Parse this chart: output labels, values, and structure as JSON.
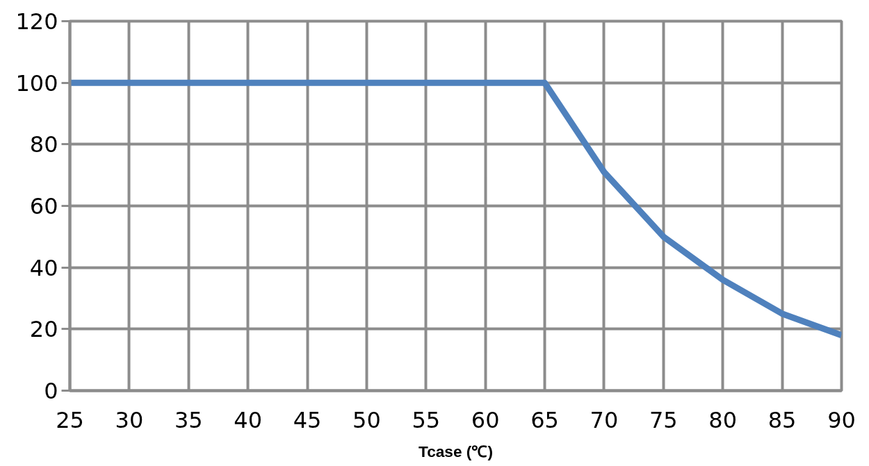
{
  "chart_data": {
    "type": "line",
    "xlabel": "Tcase (℃)",
    "x": [
      25,
      30,
      35,
      40,
      45,
      50,
      55,
      60,
      65,
      70,
      75,
      80,
      85,
      90
    ],
    "series": [
      {
        "color": "#4f81bd",
        "values": [
          100,
          100,
          100,
          100,
          100,
          100,
          100,
          100,
          100,
          71,
          50,
          36,
          25,
          18
        ]
      }
    ],
    "xlim": [
      25,
      90
    ],
    "xticks": [
      25,
      30,
      35,
      40,
      45,
      50,
      55,
      60,
      65,
      70,
      75,
      80,
      85,
      90
    ],
    "ylim": [
      0,
      120
    ],
    "yticks": [
      0,
      20,
      40,
      60,
      80,
      100,
      120
    ],
    "grid": true,
    "marker": "none",
    "line_style": "solid"
  }
}
